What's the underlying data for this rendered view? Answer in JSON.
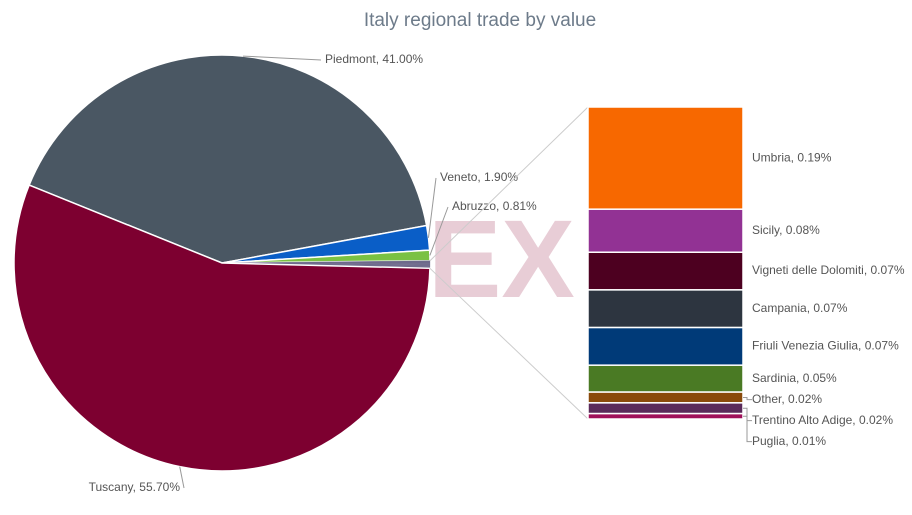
{
  "chart_data": {
    "type": "pie",
    "title": "Italy regional trade by value",
    "watermark": "EX",
    "categories": [
      "Piedmont",
      "Veneto",
      "Abruzzo",
      "Tuscany"
    ],
    "values": [
      41.0,
      1.9,
      0.81,
      55.7
    ],
    "value_labels": [
      "Piedmont, 41.00%",
      "Veneto, 1.90%",
      "Abruzzo, 0.81%",
      "Tuscany, 55.70%"
    ],
    "colors": [
      "#4a5763",
      "#0a5ec7",
      "#7ac143",
      "#7d0030"
    ],
    "breakdown": {
      "type": "bar",
      "group_color": "#6e6a8c",
      "categories": [
        "Umbria",
        "Sicily",
        "Vigneti delle Dolomiti",
        "Campania",
        "Friuli Venezia Giulia",
        "Sardinia",
        "Other",
        "Trentino Alto Adige",
        "Puglia"
      ],
      "values": [
        0.19,
        0.08,
        0.07,
        0.07,
        0.07,
        0.05,
        0.02,
        0.02,
        0.01
      ],
      "value_labels": [
        "Umbria, 0.19%",
        "Sicily, 0.08%",
        "Vigneti delle Dolomiti, 0.07%",
        "Campania, 0.07%",
        "Friuli Venezia Giulia, 0.07%",
        "Sardinia, 0.05%",
        "Other, 0.02%",
        "Trentino Alto Adige, 0.02%",
        "Puglia, 0.01%"
      ],
      "colors": [
        "#f76800",
        "#923294",
        "#4d0020",
        "#2d3540",
        "#003a78",
        "#4a7a24",
        "#8a4a0a",
        "#5a2a5a",
        "#a0105a"
      ]
    }
  }
}
